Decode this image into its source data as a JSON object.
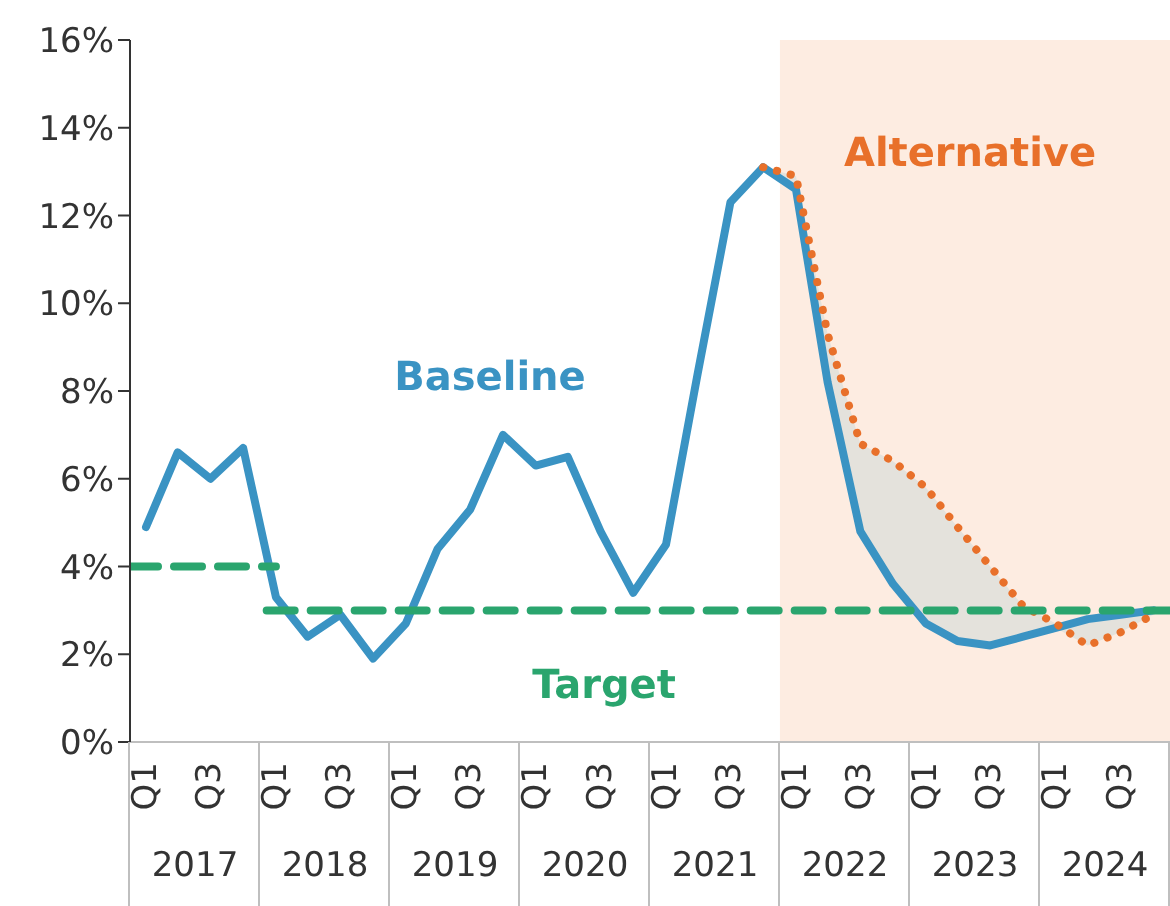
{
  "chart_data": {
    "type": "line",
    "x": [
      "2017-02-15",
      "2017-05-15",
      "2017-08-15",
      "2017-11-15",
      "2018-02-15",
      "2018-05-15",
      "2018-08-15",
      "2018-11-15",
      "2019-02-15",
      "2019-05-15",
      "2019-08-15",
      "2019-11-15",
      "2020-02-15",
      "2020-05-15",
      "2020-08-15",
      "2020-11-15",
      "2021-02-15",
      "2021-05-15",
      "2021-08-15",
      "2021-11-15",
      "2022-02-15",
      "2022-05-15",
      "2022-08-15",
      "2022-11-15",
      "2023-02-15",
      "2023-05-15",
      "2023-08-15",
      "2023-11-15",
      "2024-02-15",
      "2024-05-15",
      "2024-08-15",
      "2024-11-15"
    ],
    "series": [
      {
        "name": "Baseline",
        "color": "#3a93c3",
        "line_style": "solid",
        "values": [
          4.9,
          6.6,
          6.0,
          6.7,
          3.3,
          2.4,
          2.9,
          1.9,
          2.7,
          4.4,
          5.3,
          7.0,
          6.3,
          6.5,
          4.8,
          3.4,
          4.5,
          8.4,
          12.3,
          13.1,
          12.6,
          8.2,
          4.8,
          3.6,
          2.7,
          2.3,
          2.2,
          2.4,
          2.6,
          2.8,
          2.9,
          3.0
        ]
      },
      {
        "name": "Alternative",
        "color": "#e8702a",
        "line_style": "dotted",
        "x": [
          "2021-11-15",
          "2022-02-15",
          "2022-05-15",
          "2022-08-15",
          "2022-11-15",
          "2023-02-15",
          "2023-05-15",
          "2023-08-15",
          "2023-11-15",
          "2024-02-15",
          "2024-05-15",
          "2024-08-15",
          "2024-11-15"
        ],
        "values": [
          13.1,
          12.9,
          9.3,
          6.8,
          6.4,
          5.8,
          4.9,
          4.0,
          3.1,
          2.7,
          2.2,
          2.5,
          2.9
        ],
        "lower": [
          13.1,
          12.6,
          8.2,
          4.8,
          3.6,
          2.7,
          2.3,
          2.2,
          2.4,
          2.6,
          2.2,
          2.5,
          2.9
        ],
        "upper": [
          13.1,
          12.9,
          9.3,
          6.8,
          6.4,
          5.8,
          4.9,
          4.0,
          3.1,
          2.7,
          2.8,
          2.9,
          3.0
        ]
      },
      {
        "name": "Target",
        "color": "#2aa56e",
        "line_style": "dashed",
        "x": [
          "2017-01-01",
          "2018-02-15",
          "2018-02-01",
          "2018-01-20",
          "2025-01-01"
        ],
        "values": [
          4,
          4,
          null,
          3,
          3
        ]
      }
    ],
    "bands": [
      {
        "axis": "x",
        "from": "2022-01-01",
        "to": "2025-01-01",
        "label": null,
        "color": "#fdece1"
      }
    ],
    "xlim": [
      "2017-01-01",
      "2025-01-01"
    ],
    "xticks": [
      {
        "value": "2017-02-15",
        "label": "Q1"
      },
      {
        "value": "2017-08-15",
        "label": "Q3"
      },
      {
        "value": "2018-02-15",
        "label": "Q1"
      },
      {
        "value": "2018-08-15",
        "label": "Q3"
      },
      {
        "value": "2019-02-15",
        "label": "Q1"
      },
      {
        "value": "2019-08-15",
        "label": "Q3"
      },
      {
        "value": "2020-02-15",
        "label": "Q1"
      },
      {
        "value": "2020-08-15",
        "label": "Q3"
      },
      {
        "value": "2021-02-15",
        "label": "Q1"
      },
      {
        "value": "2021-08-15",
        "label": "Q3"
      },
      {
        "value": "2022-02-15",
        "label": "Q1"
      },
      {
        "value": "2022-08-15",
        "label": "Q3"
      },
      {
        "value": "2023-02-15",
        "label": "Q1"
      },
      {
        "value": "2023-08-15",
        "label": "Q3"
      },
      {
        "value": "2024-02-15",
        "label": "Q1"
      },
      {
        "value": "2024-08-15",
        "label": "Q3"
      }
    ],
    "annotations": [
      "2017",
      "2018",
      "2019",
      "2020",
      "2021",
      "2022",
      "2023",
      "2024"
    ],
    "ylim": [
      0,
      16
    ],
    "yticks": [
      {
        "value": 0,
        "label": "0%"
      },
      {
        "value": 2,
        "label": "2%"
      },
      {
        "value": 4,
        "label": "4%"
      },
      {
        "value": 6,
        "label": "6%"
      },
      {
        "value": 8,
        "label": "8%"
      },
      {
        "value": 10,
        "label": "10%"
      },
      {
        "value": 12,
        "label": "12%"
      },
      {
        "value": 14,
        "label": "14%"
      },
      {
        "value": 16,
        "label": "16%"
      }
    ],
    "grid": false,
    "legend": false,
    "marker": "none"
  }
}
